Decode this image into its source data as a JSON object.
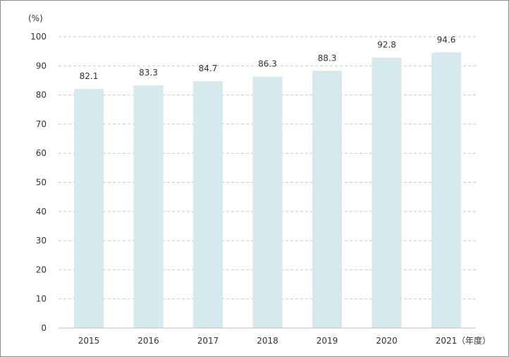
{
  "chart_data": {
    "type": "bar",
    "categories": [
      "2015",
      "2016",
      "2017",
      "2018",
      "2019",
      "2020",
      "2021"
    ],
    "values": [
      82.1,
      83.3,
      84.7,
      86.3,
      88.3,
      92.8,
      94.6
    ],
    "value_labels": [
      "82.1",
      "83.3",
      "84.7",
      "86.3",
      "88.3",
      "92.8",
      "94.6"
    ],
    "y_unit_label": "(%)",
    "x_unit_label": "（年度）",
    "ylim": [
      0,
      100
    ],
    "yticks": [
      "0",
      "10",
      "20",
      "30",
      "40",
      "50",
      "60",
      "70",
      "80",
      "90",
      "100"
    ],
    "grid": true,
    "legend": "none",
    "colors": {
      "bar": "#d6e9ec",
      "grid": "#c8c8c8",
      "axis": "#bfbfbf",
      "text": "#333333"
    }
  }
}
